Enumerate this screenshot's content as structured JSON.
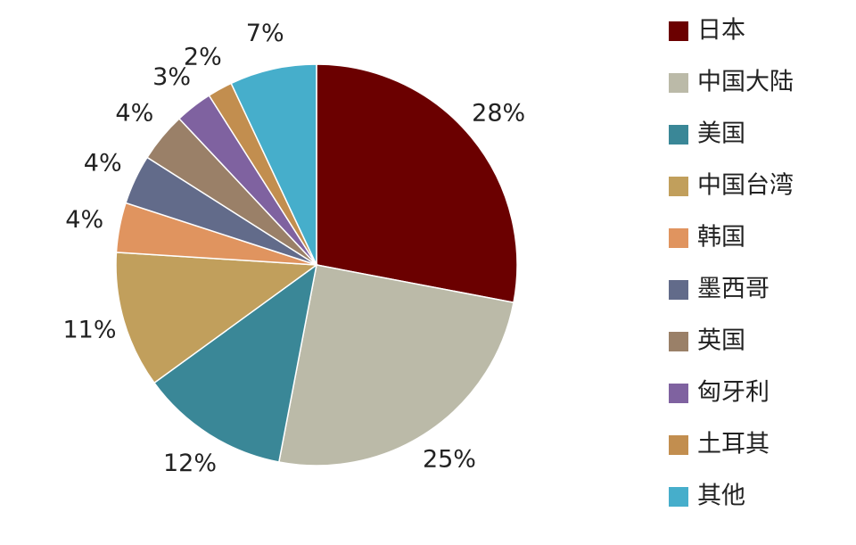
{
  "chart_data": {
    "type": "pie",
    "categories": [
      "日本",
      "中国大陆",
      "美国",
      "中国台湾",
      "韩国",
      "墨西哥",
      "英国",
      "匈牙利",
      "土耳其",
      "其他"
    ],
    "values": [
      28,
      25,
      12,
      11,
      4,
      4,
      4,
      3,
      2,
      7
    ],
    "value_labels": [
      "28%",
      "25%",
      "12%",
      "11%",
      "4%",
      "4%",
      "4%",
      "3%",
      "2%",
      "7%"
    ],
    "colors": [
      "#6b0000",
      "#bbbaa8",
      "#3a8797",
      "#c19f5c",
      "#e0945f",
      "#626b8a",
      "#9a8068",
      "#7f62a0",
      "#c28e4f",
      "#46aecb"
    ],
    "legend": "right"
  }
}
